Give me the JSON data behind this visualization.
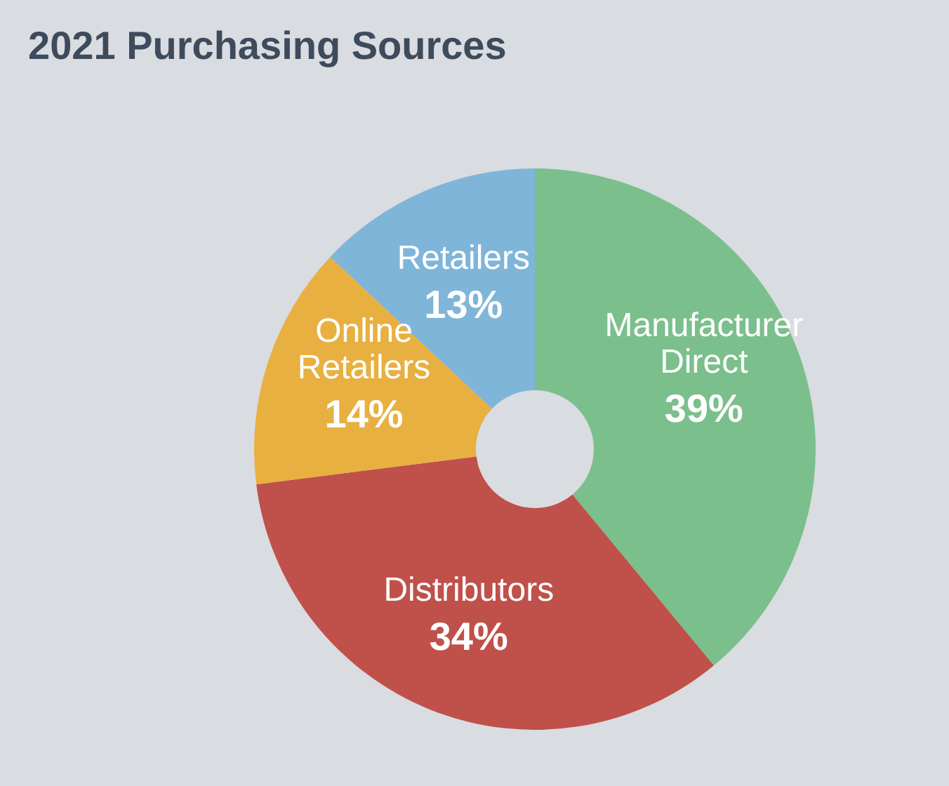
{
  "chart_data": {
    "type": "donut",
    "title": "2021 Purchasing Sources",
    "categories": [
      "Manufacturer Direct",
      "Distributors",
      "Online Retailers",
      "Retailers"
    ],
    "values": [
      39,
      34,
      14,
      13
    ],
    "value_labels": [
      "39%",
      "34%",
      "14%",
      "13%"
    ],
    "colors": [
      "#7bbf8c",
      "#c0504a",
      "#e8b040",
      "#7fb5d8"
    ],
    "legend": false
  }
}
